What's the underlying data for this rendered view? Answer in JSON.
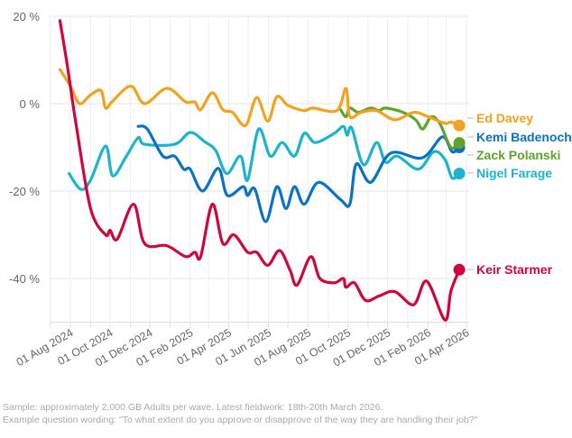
{
  "chart_data": {
    "type": "line",
    "title": "",
    "xlabel": "",
    "ylabel": "",
    "ylim": [
      -50,
      20
    ],
    "grid": true,
    "y_ticks": [
      "20 %",
      "0 %",
      "-20 %",
      "-40 %"
    ],
    "y_tick_values": [
      20,
      0,
      -20,
      -40
    ],
    "x_ticks": [
      "01 Aug 2024",
      "01 Oct 2024",
      "01 Dec 2024",
      "01 Feb 2025",
      "01 Apr 2025",
      "01 Jun 2025",
      "01 Aug 2025",
      "01 Oct 2025",
      "01 Dec 2025",
      "01 Feb 2026",
      "01 Apr 2026"
    ],
    "x_tick_dates": [
      "2024-08-01",
      "2024-10-01",
      "2024-12-01",
      "2025-02-01",
      "2025-04-01",
      "2025-06-01",
      "2025-08-01",
      "2025-10-01",
      "2025-12-01",
      "2026-02-01",
      "2026-04-01"
    ],
    "legend": "direct labels at right",
    "series": [
      {
        "name": "Ed Davey",
        "color": "#f2a21e",
        "points": [
          [
            "2024-07-16",
            7.8
          ],
          [
            "2024-08-01",
            4
          ],
          [
            "2024-08-15",
            0
          ],
          [
            "2024-09-01",
            2
          ],
          [
            "2024-09-17",
            3
          ],
          [
            "2024-09-24",
            -1
          ],
          [
            "2024-10-05",
            0.6
          ],
          [
            "2024-11-02",
            4
          ],
          [
            "2024-11-23",
            0
          ],
          [
            "2024-12-27",
            3.5
          ],
          [
            "2025-01-25",
            0.4
          ],
          [
            "2025-02-08",
            0.4
          ],
          [
            "2025-02-17",
            -1.4
          ],
          [
            "2025-03-07",
            2.5
          ],
          [
            "2025-03-23",
            -1.4
          ],
          [
            "2025-04-07",
            -2
          ],
          [
            "2025-04-27",
            -5
          ],
          [
            "2025-05-14",
            1.4
          ],
          [
            "2025-05-31",
            -4
          ],
          [
            "2025-06-14",
            1.6
          ],
          [
            "2025-07-01",
            -0.4
          ],
          [
            "2025-07-26",
            -1.6
          ],
          [
            "2025-08-08",
            -1
          ],
          [
            "2025-09-14",
            -1.6
          ],
          [
            "2025-09-28",
            3.5
          ],
          [
            "2025-10-04",
            -3
          ],
          [
            "2025-10-21",
            -2
          ],
          [
            "2025-11-14",
            -1.6
          ],
          [
            "2025-12-12",
            -3.7
          ],
          [
            "2026-01-10",
            -2
          ],
          [
            "2026-02-01",
            -3
          ],
          [
            "2026-02-27",
            -4.5
          ],
          [
            "2026-03-08",
            -4.2
          ],
          [
            "2026-03-21",
            -5
          ]
        ]
      },
      {
        "name": "Kemi Badenoch",
        "color": "#0a72c3",
        "points": [
          [
            "2024-11-13",
            -5.2
          ],
          [
            "2024-11-27",
            -5.8
          ],
          [
            "2024-12-21",
            -12
          ],
          [
            "2025-01-08",
            -12
          ],
          [
            "2025-01-22",
            -15
          ],
          [
            "2025-02-01",
            -15
          ],
          [
            "2025-02-20",
            -20
          ],
          [
            "2025-03-16",
            -14.8
          ],
          [
            "2025-03-30",
            -21
          ],
          [
            "2025-04-23",
            -19
          ],
          [
            "2025-04-30",
            -21
          ],
          [
            "2025-05-11",
            -19.5
          ],
          [
            "2025-05-28",
            -27
          ],
          [
            "2025-06-14",
            -19
          ],
          [
            "2025-06-28",
            -24
          ],
          [
            "2025-07-11",
            -19
          ],
          [
            "2025-07-26",
            -23
          ],
          [
            "2025-08-17",
            -18
          ],
          [
            "2025-09-20",
            -22
          ],
          [
            "2025-10-04",
            -23
          ],
          [
            "2025-10-14",
            -13.8
          ],
          [
            "2025-11-05",
            -18
          ],
          [
            "2025-12-06",
            -11.3
          ],
          [
            "2026-01-23",
            -12.4
          ],
          [
            "2026-02-23",
            -7.6
          ],
          [
            "2026-03-10",
            -11
          ],
          [
            "2026-03-21",
            -10
          ]
        ]
      },
      {
        "name": "Zack Polanski",
        "color": "#5ea42c",
        "points": [
          [
            "2025-09-20",
            -1.4
          ],
          [
            "2025-09-28",
            -3
          ],
          [
            "2025-10-04",
            -1
          ],
          [
            "2025-10-17",
            -2
          ],
          [
            "2025-11-05",
            -1
          ],
          [
            "2025-11-18",
            -1.6
          ],
          [
            "2025-11-28",
            -1
          ],
          [
            "2025-12-25",
            -2
          ],
          [
            "2026-01-13",
            -3.7
          ],
          [
            "2026-01-24",
            -5.8
          ],
          [
            "2026-02-06",
            -3
          ],
          [
            "2026-02-19",
            -4.5
          ],
          [
            "2026-03-08",
            -10
          ],
          [
            "2026-03-21",
            -9
          ]
        ]
      },
      {
        "name": "Nigel Farage",
        "color": "#1db3cf",
        "points": [
          [
            "2024-07-30",
            -16
          ],
          [
            "2024-08-17",
            -19.6
          ],
          [
            "2024-09-01",
            -17.5
          ],
          [
            "2024-09-24",
            -9.7
          ],
          [
            "2024-10-05",
            -16.5
          ],
          [
            "2024-10-26",
            -12
          ],
          [
            "2024-11-13",
            -7.8
          ],
          [
            "2024-11-23",
            -9.3
          ],
          [
            "2025-01-08",
            -9.3
          ],
          [
            "2025-02-01",
            -6.6
          ],
          [
            "2025-02-23",
            -8.7
          ],
          [
            "2025-03-12",
            -10.7
          ],
          [
            "2025-03-29",
            -16
          ],
          [
            "2025-04-19",
            -12
          ],
          [
            "2025-04-30",
            -17.5
          ],
          [
            "2025-05-17",
            -5.8
          ],
          [
            "2025-06-04",
            -12
          ],
          [
            "2025-06-22",
            -8.9
          ],
          [
            "2025-07-11",
            -12
          ],
          [
            "2025-07-26",
            -6.8
          ],
          [
            "2025-08-12",
            -8.9
          ],
          [
            "2025-09-10",
            -6.8
          ],
          [
            "2025-09-24",
            -5.2
          ],
          [
            "2025-09-30",
            -7.2
          ],
          [
            "2025-10-07",
            -5.6
          ],
          [
            "2025-10-25",
            -14
          ],
          [
            "2025-11-14",
            -8.9
          ],
          [
            "2025-11-28",
            -13.4
          ],
          [
            "2025-12-16",
            -12
          ],
          [
            "2026-01-17",
            -15
          ],
          [
            "2026-02-10",
            -11
          ],
          [
            "2026-02-27",
            -12.8
          ],
          [
            "2026-03-10",
            -17
          ],
          [
            "2026-03-21",
            -16
          ]
        ]
      },
      {
        "name": "Keir Starmer",
        "color": "#d0053c",
        "points": [
          [
            "2024-07-16",
            19
          ],
          [
            "2024-07-27",
            9
          ],
          [
            "2024-08-10",
            -5
          ],
          [
            "2024-09-01",
            -24
          ],
          [
            "2024-09-24",
            -30
          ],
          [
            "2024-10-01",
            -29
          ],
          [
            "2024-10-12",
            -31
          ],
          [
            "2024-11-06",
            -23
          ],
          [
            "2024-11-23",
            -32
          ],
          [
            "2024-12-27",
            -32.5
          ],
          [
            "2025-01-25",
            -35
          ],
          [
            "2025-02-08",
            -34
          ],
          [
            "2025-02-17",
            -35
          ],
          [
            "2025-03-07",
            -23
          ],
          [
            "2025-03-23",
            -32
          ],
          [
            "2025-04-09",
            -30
          ],
          [
            "2025-04-30",
            -34
          ],
          [
            "2025-05-14",
            -34
          ],
          [
            "2025-05-31",
            -37
          ],
          [
            "2025-06-18",
            -33.6
          ],
          [
            "2025-07-04",
            -38
          ],
          [
            "2025-07-15",
            -41.5
          ],
          [
            "2025-08-05",
            -35
          ],
          [
            "2025-08-19",
            -40
          ],
          [
            "2025-09-10",
            -41
          ],
          [
            "2025-09-24",
            -40
          ],
          [
            "2025-09-28",
            -42
          ],
          [
            "2025-10-11",
            -41
          ],
          [
            "2025-10-28",
            -45
          ],
          [
            "2025-11-18",
            -44
          ],
          [
            "2025-12-12",
            -43
          ],
          [
            "2026-01-10",
            -46
          ],
          [
            "2026-01-30",
            -40.6
          ],
          [
            "2026-02-27",
            -49.5
          ],
          [
            "2026-03-08",
            -43
          ],
          [
            "2026-03-21",
            -38
          ]
        ]
      }
    ]
  },
  "footnote": {
    "line1": "Sample: approximately 2,000 GB Adults per wave. Latest fieldwork: 18th-20th March 2026.",
    "line2": "Example question wording: \"To what extent do you approve or disapprove of the way they are handling their job?\""
  }
}
